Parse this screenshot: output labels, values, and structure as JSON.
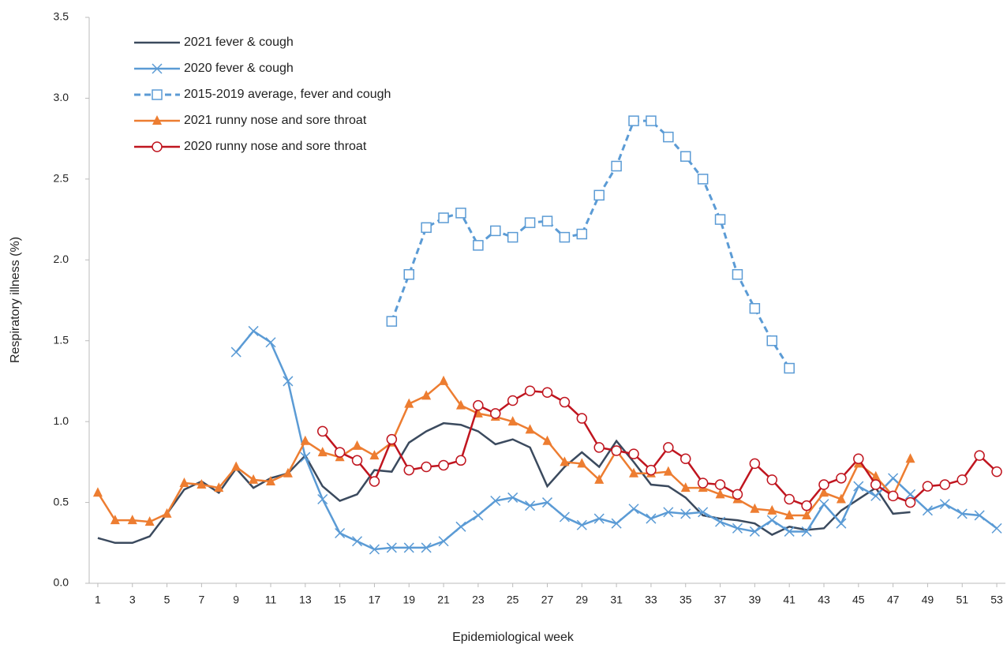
{
  "chart_data": {
    "type": "line",
    "y_label": "Respiratory illness (%)",
    "x_label": "Epidemiological week",
    "x": [
      1,
      2,
      3,
      4,
      5,
      6,
      7,
      8,
      9,
      10,
      11,
      12,
      13,
      14,
      15,
      16,
      17,
      18,
      19,
      20,
      21,
      22,
      23,
      24,
      25,
      26,
      27,
      28,
      29,
      30,
      31,
      32,
      33,
      34,
      35,
      36,
      37,
      38,
      39,
      40,
      41,
      42,
      43,
      44,
      45,
      46,
      47,
      48,
      49,
      50,
      51,
      52,
      53
    ],
    "xlim": [
      0.5,
      53.5
    ],
    "xticks": [
      1,
      3,
      5,
      7,
      9,
      11,
      13,
      15,
      17,
      19,
      21,
      23,
      25,
      27,
      29,
      31,
      33,
      35,
      37,
      39,
      41,
      43,
      45,
      47,
      49,
      51,
      53
    ],
    "ylim": [
      0,
      3.5
    ],
    "yticks": [
      {
        "value": 0,
        "label": "0.0"
      },
      0.5,
      {
        "value": 1,
        "label": "1.0"
      },
      1.5,
      {
        "value": 2,
        "label": "2.0"
      },
      2.5,
      {
        "value": 3,
        "label": "3.0"
      },
      3.5
    ],
    "grid": false,
    "legend": "top-left",
    "series": [
      {
        "name": "2021 fever & cough",
        "color": "#3b4a5e",
        "marker": "none",
        "dashed": false,
        "values": [
          0.28,
          0.25,
          0.25,
          0.29,
          0.43,
          0.58,
          0.63,
          0.56,
          0.71,
          0.59,
          0.65,
          0.68,
          0.79,
          0.6,
          0.51,
          0.55,
          0.7,
          0.69,
          0.87,
          0.94,
          0.99,
          0.98,
          0.94,
          0.86,
          0.89,
          0.84,
          0.6,
          0.72,
          0.81,
          0.72,
          0.88,
          0.75,
          0.61,
          0.6,
          0.53,
          0.42,
          0.4,
          0.39,
          0.37,
          0.3,
          0.35,
          0.33,
          0.34,
          0.45,
          0.52,
          0.59,
          0.43,
          0.44,
          null,
          null,
          null,
          null,
          null
        ]
      },
      {
        "name": "2020 fever & cough",
        "color": "#5b9bd5",
        "marker": "x",
        "dashed": false,
        "values": [
          null,
          null,
          null,
          null,
          null,
          null,
          null,
          null,
          1.43,
          1.56,
          1.49,
          1.25,
          0.78,
          0.52,
          0.31,
          0.26,
          0.21,
          0.22,
          0.22,
          0.22,
          0.26,
          0.35,
          0.42,
          0.51,
          0.53,
          0.48,
          0.5,
          0.41,
          0.36,
          0.4,
          0.37,
          0.46,
          0.4,
          0.44,
          0.43,
          0.44,
          0.38,
          0.34,
          0.32,
          0.39,
          0.32,
          0.32,
          0.49,
          0.37,
          0.6,
          0.54,
          0.65,
          0.55,
          0.45,
          0.49,
          0.43,
          0.42,
          0.34
        ]
      },
      {
        "name": "2015-2019 average, fever and cough",
        "color": "#5b9bd5",
        "marker": "square",
        "dashed": true,
        "values": [
          null,
          null,
          null,
          null,
          null,
          null,
          null,
          null,
          null,
          null,
          null,
          null,
          null,
          null,
          null,
          null,
          null,
          1.62,
          1.91,
          2.2,
          2.26,
          2.29,
          2.09,
          2.18,
          2.14,
          2.23,
          2.24,
          2.14,
          2.16,
          2.4,
          2.58,
          2.86,
          2.86,
          2.76,
          2.64,
          2.5,
          2.25,
          1.91,
          1.7,
          1.5,
          1.33,
          null,
          null,
          null,
          null,
          null,
          null,
          null,
          null,
          null,
          null,
          null,
          null
        ]
      },
      {
        "name": "2021 runny nose and sore throat",
        "color": "#ed7d31",
        "marker": "triangle",
        "dashed": false,
        "values": [
          0.56,
          0.39,
          0.39,
          0.38,
          0.43,
          0.62,
          0.61,
          0.59,
          0.72,
          0.64,
          0.63,
          0.68,
          0.88,
          0.81,
          0.78,
          0.85,
          0.79,
          0.87,
          1.11,
          1.16,
          1.25,
          1.1,
          1.05,
          1.03,
          1.0,
          0.95,
          0.88,
          0.75,
          0.74,
          0.64,
          0.82,
          0.68,
          0.68,
          0.69,
          0.59,
          0.59,
          0.55,
          0.52,
          0.46,
          0.45,
          0.42,
          0.42,
          0.56,
          0.52,
          0.74,
          0.66,
          0.54,
          0.77,
          null,
          null,
          null,
          null,
          null
        ]
      },
      {
        "name": "2020 runny nose and sore throat",
        "color": "#c0151f",
        "marker": "circle",
        "dashed": false,
        "values": [
          null,
          null,
          null,
          null,
          null,
          null,
          null,
          null,
          null,
          null,
          null,
          null,
          null,
          0.94,
          0.81,
          0.76,
          0.63,
          0.89,
          0.7,
          0.72,
          0.73,
          0.76,
          1.1,
          1.05,
          1.13,
          1.19,
          1.18,
          1.12,
          1.02,
          0.84,
          0.82,
          0.8,
          0.7,
          0.84,
          0.77,
          0.62,
          0.61,
          0.55,
          0.74,
          0.64,
          0.52,
          0.48,
          0.61,
          0.65,
          0.77,
          0.61,
          0.54,
          0.5,
          0.6,
          0.61,
          0.64,
          0.79,
          0.69
        ]
      }
    ]
  }
}
